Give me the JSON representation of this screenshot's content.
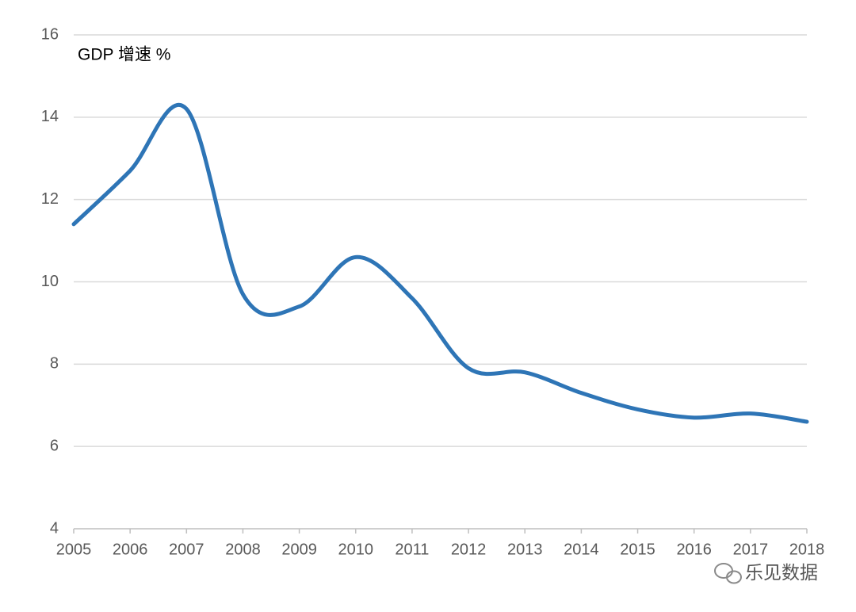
{
  "chart_data": {
    "type": "line",
    "title": "GDP 增速 %",
    "x": [
      2005,
      2006,
      2007,
      2008,
      2009,
      2010,
      2011,
      2012,
      2013,
      2014,
      2015,
      2016,
      2017,
      2018
    ],
    "series": [
      {
        "name": "GDP 增速",
        "color": "#2e75b6",
        "values": [
          11.4,
          12.7,
          14.2,
          9.7,
          9.4,
          10.6,
          9.6,
          7.9,
          7.8,
          7.3,
          6.9,
          6.7,
          6.8,
          6.6
        ]
      }
    ],
    "xlim": [
      2005,
      2018
    ],
    "xticks": [
      2005,
      2006,
      2007,
      2008,
      2009,
      2010,
      2011,
      2012,
      2013,
      2014,
      2015,
      2016,
      2017,
      2018
    ],
    "ylim": [
      4,
      16
    ],
    "yticks": [
      4,
      6,
      8,
      10,
      12,
      14,
      16
    ],
    "grid": true,
    "smooth": true,
    "watermark": "乐见数据"
  }
}
